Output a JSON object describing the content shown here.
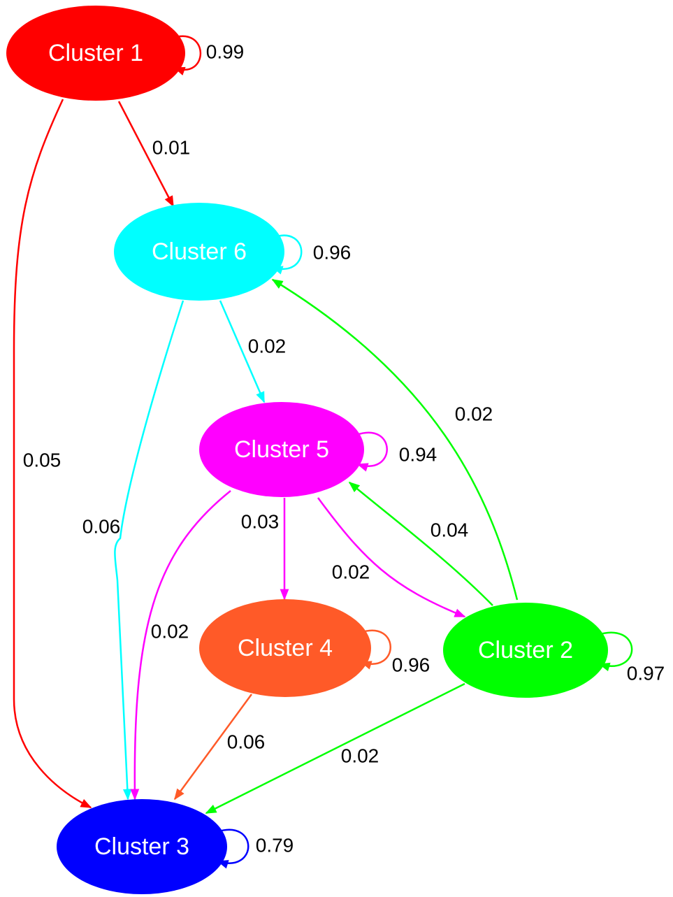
{
  "nodes": [
    {
      "label": "Cluster 1",
      "color": "#ff0000"
    },
    {
      "label": "Cluster 6",
      "color": "#00ffff"
    },
    {
      "label": "Cluster 5",
      "color": "#ff00ff"
    },
    {
      "label": "Cluster 4",
      "color": "#ff5a28"
    },
    {
      "label": "Cluster 2",
      "color": "#00ff00"
    },
    {
      "label": "Cluster 3",
      "color": "#0000ff"
    }
  ],
  "edges": [
    {
      "label": "0.99"
    },
    {
      "label": "0.01"
    },
    {
      "label": "0.05"
    },
    {
      "label": "0.96"
    },
    {
      "label": "0.02"
    },
    {
      "label": "0.06"
    },
    {
      "label": "0.02"
    },
    {
      "label": "0.94"
    },
    {
      "label": "0.03"
    },
    {
      "label": "0.02"
    },
    {
      "label": "0.04"
    },
    {
      "label": "0.02"
    },
    {
      "label": "0.96"
    },
    {
      "label": "0.06"
    },
    {
      "label": "0.97"
    },
    {
      "label": "0.02"
    },
    {
      "label": "0.79"
    }
  ]
}
